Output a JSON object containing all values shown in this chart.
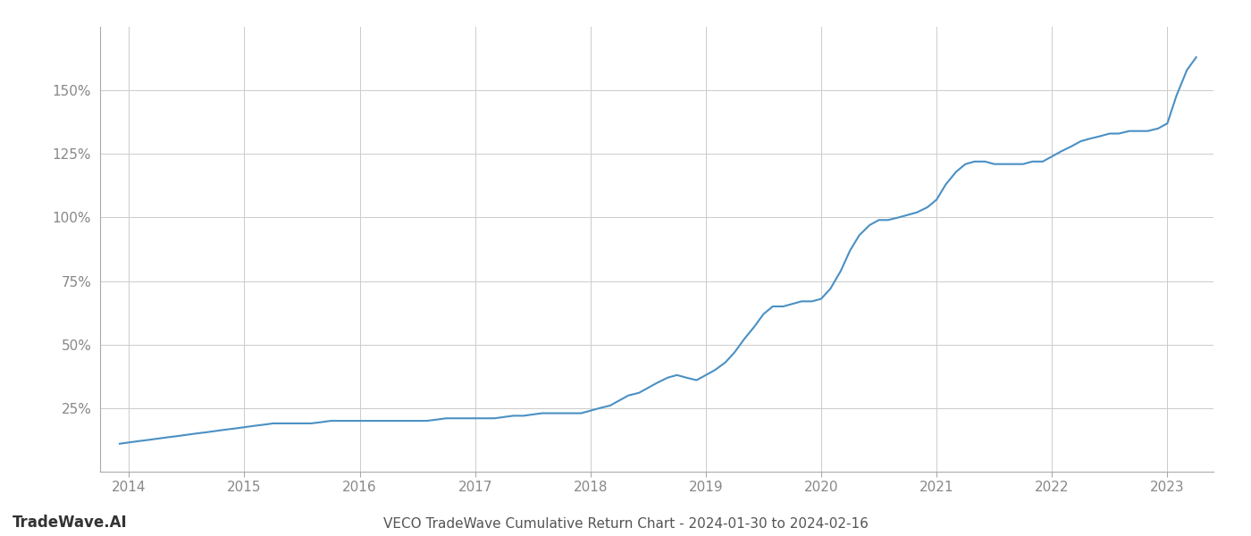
{
  "title": "VECO TradeWave Cumulative Return Chart - 2024-01-30 to 2024-02-16",
  "watermark": "TradeWave.AI",
  "line_color": "#4a90c4",
  "line_width": 1.5,
  "background_color": "#ffffff",
  "grid_color": "#cccccc",
  "x_years": [
    2014,
    2015,
    2016,
    2017,
    2018,
    2019,
    2020,
    2021,
    2022,
    2023
  ],
  "x_data": [
    2013.92,
    2014.0,
    2014.08,
    2014.17,
    2014.25,
    2014.33,
    2014.42,
    2014.5,
    2014.58,
    2014.67,
    2014.75,
    2014.83,
    2014.92,
    2015.0,
    2015.08,
    2015.17,
    2015.25,
    2015.33,
    2015.42,
    2015.5,
    2015.58,
    2015.67,
    2015.75,
    2015.83,
    2015.92,
    2016.0,
    2016.08,
    2016.17,
    2016.25,
    2016.33,
    2016.42,
    2016.5,
    2016.58,
    2016.67,
    2016.75,
    2016.83,
    2016.92,
    2017.0,
    2017.08,
    2017.17,
    2017.25,
    2017.33,
    2017.42,
    2017.5,
    2017.58,
    2017.67,
    2017.75,
    2017.83,
    2017.92,
    2018.0,
    2018.08,
    2018.17,
    2018.25,
    2018.33,
    2018.42,
    2018.5,
    2018.58,
    2018.67,
    2018.75,
    2018.83,
    2018.92,
    2019.0,
    2019.08,
    2019.17,
    2019.25,
    2019.33,
    2019.42,
    2019.5,
    2019.58,
    2019.67,
    2019.75,
    2019.83,
    2019.92,
    2020.0,
    2020.08,
    2020.17,
    2020.25,
    2020.33,
    2020.42,
    2020.5,
    2020.58,
    2020.67,
    2020.75,
    2020.83,
    2020.92,
    2021.0,
    2021.08,
    2021.17,
    2021.25,
    2021.33,
    2021.42,
    2021.5,
    2021.58,
    2021.67,
    2021.75,
    2021.83,
    2021.92,
    2022.0,
    2022.08,
    2022.17,
    2022.25,
    2022.33,
    2022.42,
    2022.5,
    2022.58,
    2022.67,
    2022.75,
    2022.83,
    2022.92,
    2023.0,
    2023.08,
    2023.17,
    2023.25
  ],
  "y_data": [
    11,
    11.5,
    12,
    12.5,
    13,
    13.5,
    14,
    14.5,
    15,
    15.5,
    16,
    16.5,
    17,
    17.5,
    18,
    18.5,
    19,
    19,
    19,
    19,
    19,
    19.5,
    20,
    20,
    20,
    20,
    20,
    20,
    20,
    20,
    20,
    20,
    20,
    20.5,
    21,
    21,
    21,
    21,
    21,
    21,
    21.5,
    22,
    22,
    22.5,
    23,
    23,
    23,
    23,
    23,
    24,
    25,
    26,
    28,
    30,
    31,
    33,
    35,
    37,
    38,
    37,
    36,
    38,
    40,
    43,
    47,
    52,
    57,
    62,
    65,
    65,
    66,
    67,
    67,
    68,
    72,
    79,
    87,
    93,
    97,
    99,
    99,
    100,
    101,
    102,
    104,
    107,
    113,
    118,
    121,
    122,
    122,
    121,
    121,
    121,
    121,
    122,
    122,
    124,
    126,
    128,
    130,
    131,
    132,
    133,
    133,
    134,
    134,
    134,
    135,
    137,
    148,
    158,
    163
  ],
  "yticks": [
    25,
    50,
    75,
    100,
    125,
    150
  ],
  "ytick_labels": [
    "25%",
    "50%",
    "75%",
    "100%",
    "125%",
    "150%"
  ],
  "ylim": [
    0,
    175
  ],
  "xlim": [
    2013.75,
    2023.4
  ],
  "title_fontsize": 11,
  "watermark_fontsize": 12,
  "tick_fontsize": 11,
  "tick_color": "#888888"
}
